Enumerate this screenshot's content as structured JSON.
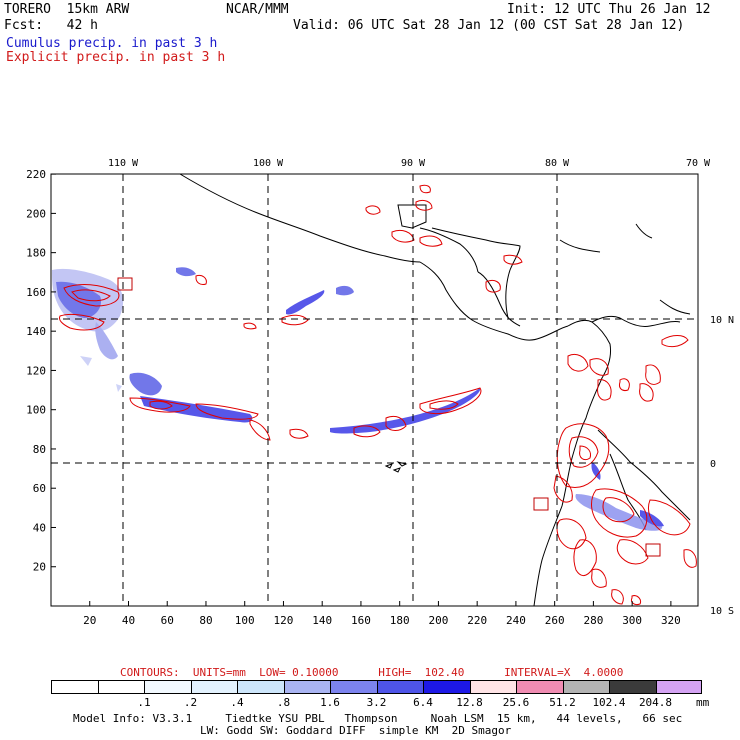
{
  "header": {
    "model": "TORERO  15km ARW",
    "org": "NCAR/MMM",
    "init": "Init: 12 UTC Thu 26 Jan 12",
    "fcst": "Fcst:   42 h",
    "valid": "Valid: 06 UTC Sat 28 Jan 12 (00 CST Sat 28 Jan 12)",
    "cumulus": "Cumulus precip. in past 3 h",
    "explicit": "Explicit precip. in past 3 h"
  },
  "map": {
    "top_lon_labels": [
      "110 W",
      "100 W",
      "90 W",
      "80 W",
      "70 W"
    ],
    "right_lat_labels": [
      "10 N",
      "0",
      "10 S"
    ],
    "y_ticks": [
      "220",
      "200",
      "180",
      "160",
      "140",
      "120",
      "100",
      "80",
      "60",
      "40",
      "20"
    ],
    "x_ticks": [
      "20",
      "40",
      "60",
      "80",
      "100",
      "120",
      "140",
      "160",
      "180",
      "200",
      "220",
      "240",
      "260",
      "280",
      "300",
      "320"
    ],
    "colors": {
      "cumulus": "#2020e0",
      "explicit": "#e00000",
      "coast": "#000000"
    }
  },
  "legend": {
    "contours_line": "CONTOURS:  UNITS=mm  LOW= 0.10000      HIGH=  102.40      INTERVAL=X  4.0000",
    "levels": [
      ".1",
      ".2",
      ".4",
      ".8",
      "1.6",
      "3.2",
      "6.4",
      "12.8",
      "25.6",
      "51.2",
      "102.4",
      "204.8"
    ],
    "unit": "mm",
    "colors": [
      "#ffffff",
      "#ffffff",
      "#f2f9ff",
      "#e3f2fe",
      "#cde6fb",
      "#a9b4f2",
      "#7c83ee",
      "#4e54e8",
      "#1d18e6",
      "#ffe4e6",
      "#f08cb2",
      "#b3b3b3",
      "#3b3b3b",
      "#d4a3f3"
    ]
  },
  "footer": {
    "line1": "Model Info: V3.3.1     Tiedtke YSU PBL   Thompson     Noah LSM  15 km,   44 levels,   66 sec",
    "line2": "LW: Godd SW: Goddard DIFF  simple KM  2D Smagor"
  }
}
